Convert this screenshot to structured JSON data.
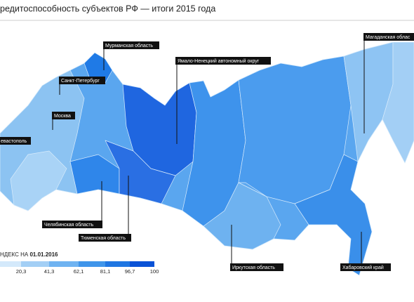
{
  "header": {
    "title": "редитоспособность субъектов РФ — итоги 2015 года"
  },
  "map": {
    "labels": [
      "Мурманская область",
      "Санкт-Петербург",
      "Москва",
      "евастополь",
      "Ямало-Ненецкий автономный округ",
      "Магаданская облас",
      "Челябинская область",
      "Тюменская область",
      "Иркутская область",
      "Хабаровский край"
    ]
  },
  "legend": {
    "title": "НДЕКС НА",
    "date": "01.01.2016",
    "ticks": [
      "20,3",
      "41,3",
      "62,1",
      "81,1",
      "96,7",
      "100"
    ]
  }
}
